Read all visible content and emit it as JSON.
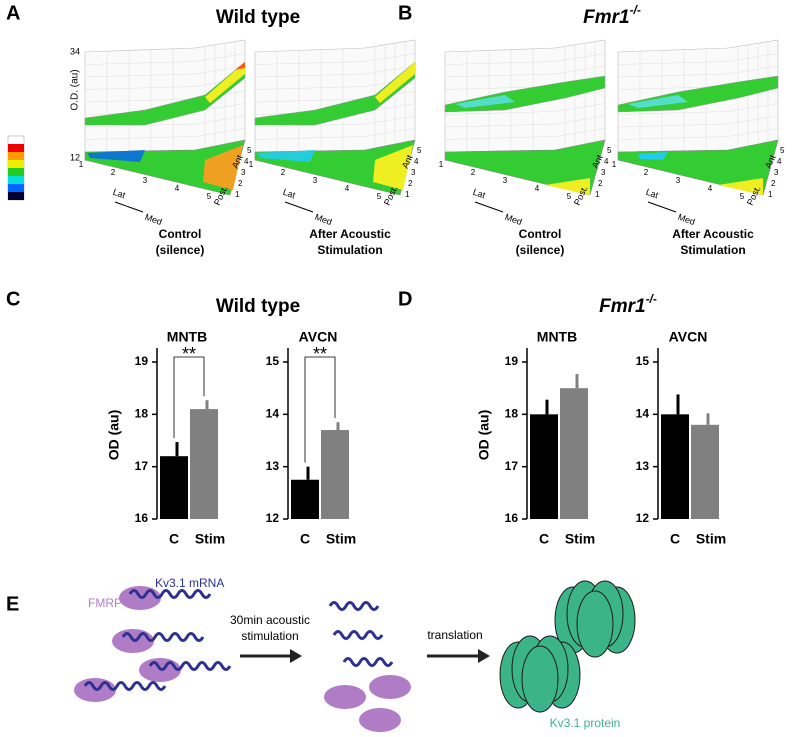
{
  "panel_a": {
    "label": "A",
    "title": "Wild type",
    "z_axis_label": "O.D. (au)",
    "z_ticks": [
      "34",
      "12"
    ],
    "grid_ticks": [
      "1",
      "2",
      "3",
      "4",
      "5"
    ],
    "lat": "Lat",
    "med": "Med",
    "post": "Post.",
    "ant": "Ant",
    "plots": [
      {
        "caption": [
          "Control",
          "(silence)"
        ]
      },
      {
        "caption": [
          "After Acoustic",
          "Stimulation"
        ]
      }
    ]
  },
  "panel_b": {
    "label": "B",
    "title": "Fmr1",
    "title_sup": "-/-",
    "plots": [
      {
        "caption": [
          "Control",
          "(silence)"
        ]
      },
      {
        "caption": [
          "After Acoustic",
          "Stimulation"
        ]
      }
    ]
  },
  "panel_c": {
    "label": "C",
    "title": "Wild type"
  },
  "panel_d": {
    "label": "D",
    "title": "Fmr1",
    "title_sup": "-/-"
  },
  "chart_data": [
    {
      "type": "bar",
      "title": "MNTB",
      "ylabel": "OD (au)",
      "categories": [
        "C",
        "Stim"
      ],
      "values": [
        17.2,
        18.1
      ],
      "errors": [
        0.27,
        0.17
      ],
      "colors": [
        "#000000",
        "#808080"
      ],
      "ylim": [
        16,
        19
      ],
      "yticks": [
        16,
        17,
        18,
        19
      ],
      "annotation": "**"
    },
    {
      "type": "bar",
      "title": "AVCN",
      "categories": [
        "C",
        "Stim"
      ],
      "values": [
        12.75,
        13.7
      ],
      "errors": [
        0.25,
        0.15
      ],
      "colors": [
        "#000000",
        "#808080"
      ],
      "ylim": [
        12,
        15
      ],
      "yticks": [
        12,
        13,
        14,
        15
      ],
      "annotation": "**"
    },
    {
      "type": "bar",
      "title": "MNTB",
      "ylabel": "OD (au)",
      "categories": [
        "C",
        "Stim"
      ],
      "values": [
        18.0,
        18.5
      ],
      "errors": [
        0.28,
        0.27
      ],
      "colors": [
        "#000000",
        "#808080"
      ],
      "ylim": [
        16,
        19
      ],
      "yticks": [
        16,
        17,
        18,
        19
      ]
    },
    {
      "type": "bar",
      "title": "AVCN",
      "categories": [
        "C",
        "Stim"
      ],
      "values": [
        14.0,
        13.8
      ],
      "errors": [
        0.38,
        0.22
      ],
      "colors": [
        "#000000",
        "#808080"
      ],
      "ylim": [
        12,
        15
      ],
      "yticks": [
        12,
        13,
        14,
        15
      ]
    }
  ],
  "panel_e": {
    "label": "E",
    "mrna": "Kv3.1 mRNA",
    "fmrp": "FMRP",
    "step1": [
      "30min acoustic",
      "stimulation"
    ],
    "step2": "translation",
    "protein": "Kv3.1 protein"
  }
}
